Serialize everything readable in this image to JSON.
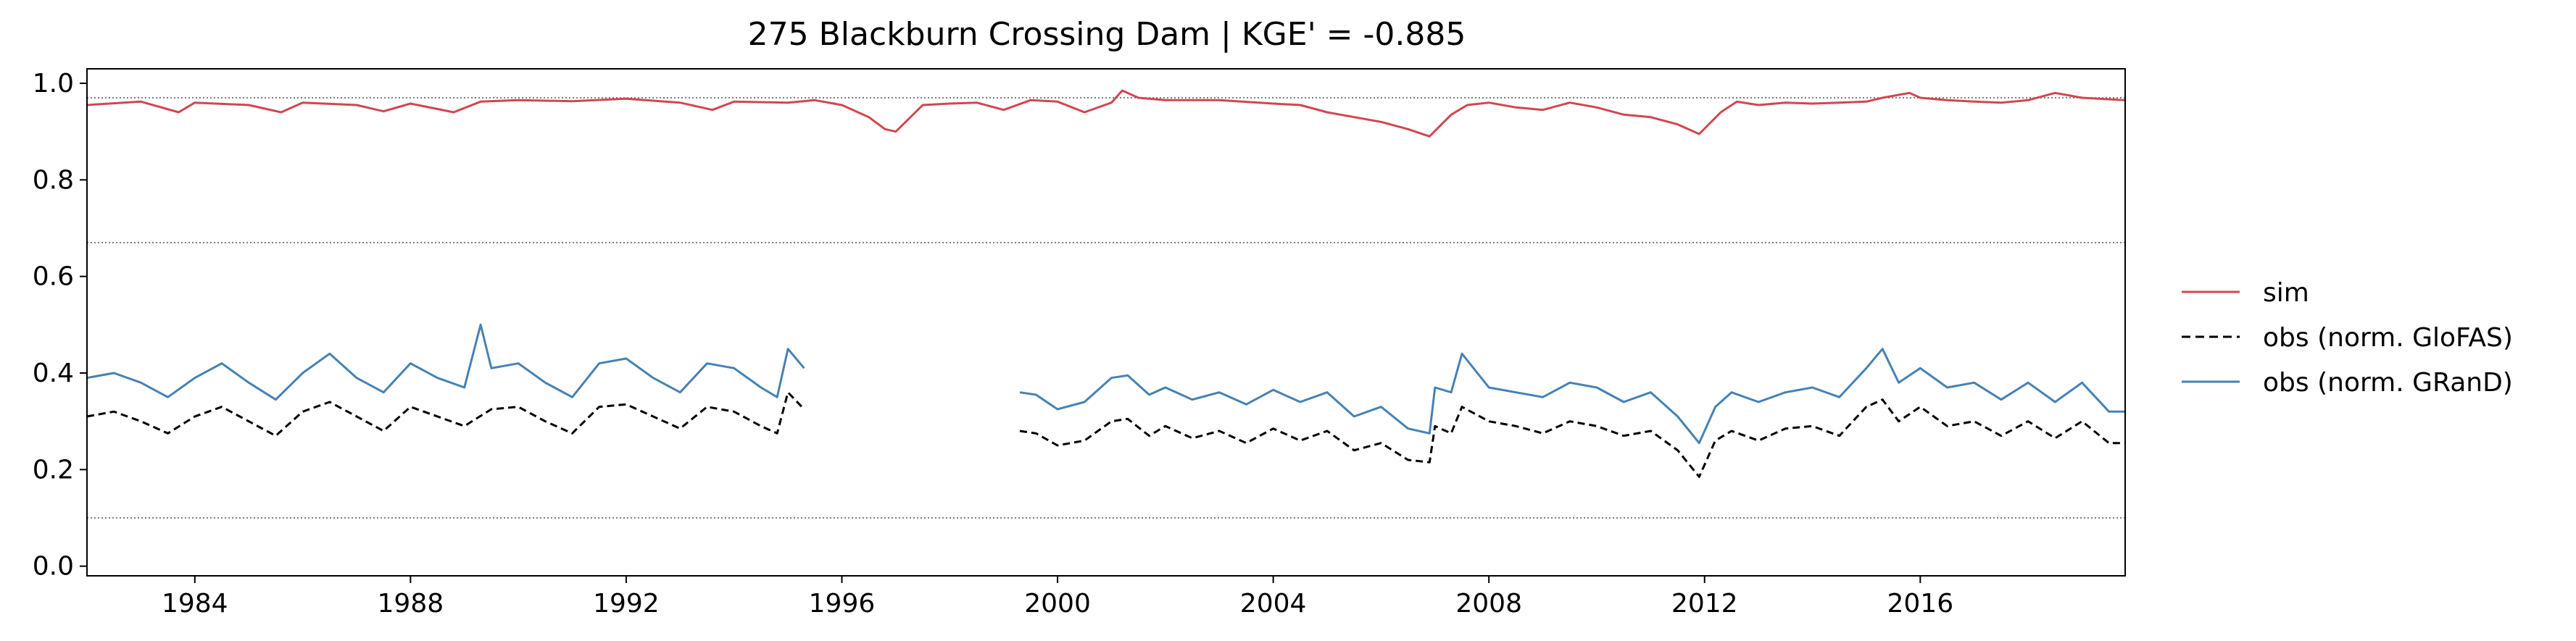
{
  "chart_data": {
    "type": "line",
    "title": "275  Blackburn Crossing Dam | KGE' = -0.885",
    "xlabel": "",
    "ylabel": "",
    "xlim": [
      1982.0,
      2019.8
    ],
    "ylim": [
      -0.02,
      1.03
    ],
    "x_ticks": [
      1984,
      1988,
      1992,
      1996,
      2000,
      2004,
      2008,
      2012,
      2016
    ],
    "x_tick_labels": [
      "1984",
      "1988",
      "1992",
      "1996",
      "2000",
      "2004",
      "2008",
      "2012",
      "2016"
    ],
    "y_ticks": [
      0.0,
      0.2,
      0.4,
      0.6,
      0.8,
      1.0
    ],
    "y_tick_labels": [
      "0.0",
      "0.2",
      "0.4",
      "0.6",
      "0.8",
      "1.0"
    ],
    "reference_lines": [
      0.97,
      0.67,
      0.1
    ],
    "grid": false,
    "legend_position": "outside-right",
    "series": [
      {
        "name": "sim",
        "label": "sim",
        "color": "#d0474f",
        "style": "solid",
        "x": [
          1982.0,
          1983.0,
          1983.7,
          1984.0,
          1985.0,
          1985.6,
          1986.0,
          1987.0,
          1987.5,
          1988.0,
          1988.8,
          1989.3,
          1990.0,
          1991.0,
          1992.0,
          1993.0,
          1993.6,
          1994.0,
          1995.0,
          1995.5,
          1996.0,
          1996.5,
          1996.8,
          1997.0,
          1997.5,
          1998.0,
          1998.5,
          1999.0,
          1999.5,
          2000.0,
          2000.5,
          2001.0,
          2001.2,
          2001.5,
          2002.0,
          2003.0,
          2004.0,
          2004.5,
          2005.0,
          2005.5,
          2006.0,
          2006.5,
          2006.9,
          2007.3,
          2007.6,
          2008.0,
          2008.5,
          2009.0,
          2009.5,
          2010.0,
          2010.5,
          2011.0,
          2011.5,
          2011.9,
          2012.3,
          2012.6,
          2013.0,
          2013.5,
          2014.0,
          2014.5,
          2015.0,
          2015.3,
          2015.8,
          2016.0,
          2016.5,
          2017.0,
          2017.5,
          2018.0,
          2018.5,
          2019.0,
          2019.8
        ],
        "values": [
          0.955,
          0.962,
          0.94,
          0.96,
          0.955,
          0.94,
          0.96,
          0.955,
          0.942,
          0.958,
          0.94,
          0.962,
          0.965,
          0.963,
          0.968,
          0.96,
          0.945,
          0.962,
          0.96,
          0.965,
          0.955,
          0.93,
          0.905,
          0.9,
          0.955,
          0.958,
          0.96,
          0.945,
          0.965,
          0.962,
          0.94,
          0.96,
          0.985,
          0.97,
          0.965,
          0.965,
          0.958,
          0.955,
          0.94,
          0.93,
          0.92,
          0.905,
          0.89,
          0.935,
          0.955,
          0.96,
          0.95,
          0.945,
          0.96,
          0.95,
          0.935,
          0.93,
          0.915,
          0.895,
          0.94,
          0.962,
          0.955,
          0.96,
          0.958,
          0.96,
          0.962,
          0.97,
          0.98,
          0.97,
          0.965,
          0.962,
          0.96,
          0.965,
          0.98,
          0.97,
          0.965
        ]
      },
      {
        "name": "obs-glofas",
        "label": "obs (norm. GloFAS)",
        "color": "#000000",
        "style": "dashed",
        "segments": [
          {
            "x": [
              1982.0,
              1982.5,
              1983.0,
              1983.5,
              1984.0,
              1984.5,
              1985.0,
              1985.5,
              1986.0,
              1986.5,
              1987.0,
              1987.5,
              1988.0,
              1988.5,
              1989.0,
              1989.5,
              1990.0,
              1990.5,
              1991.0,
              1991.5,
              1992.0,
              1992.5,
              1993.0,
              1993.5,
              1994.0,
              1994.5,
              1994.8,
              1995.0,
              1995.3
            ],
            "values": [
              0.31,
              0.32,
              0.3,
              0.275,
              0.31,
              0.33,
              0.3,
              0.27,
              0.32,
              0.34,
              0.31,
              0.28,
              0.33,
              0.31,
              0.29,
              0.325,
              0.33,
              0.3,
              0.275,
              0.33,
              0.335,
              0.31,
              0.285,
              0.33,
              0.32,
              0.29,
              0.275,
              0.36,
              0.325
            ]
          },
          {
            "x": [
              1999.3,
              1999.6,
              2000.0,
              2000.5,
              2001.0,
              2001.3,
              2001.7,
              2002.0,
              2002.5,
              2003.0,
              2003.5,
              2004.0,
              2004.5,
              2005.0,
              2005.5,
              2006.0,
              2006.5,
              2006.9,
              2007.0,
              2007.3,
              2007.5,
              2008.0,
              2008.5,
              2009.0,
              2009.5,
              2010.0,
              2010.5,
              2011.0,
              2011.5,
              2011.9,
              2012.2,
              2012.5,
              2013.0,
              2013.5,
              2014.0,
              2014.5,
              2015.0,
              2015.3,
              2015.6,
              2016.0,
              2016.5,
              2017.0,
              2017.5,
              2018.0,
              2018.5,
              2019.0,
              2019.5,
              2019.8
            ],
            "values": [
              0.28,
              0.275,
              0.25,
              0.26,
              0.3,
              0.305,
              0.27,
              0.29,
              0.265,
              0.28,
              0.255,
              0.285,
              0.26,
              0.28,
              0.24,
              0.255,
              0.22,
              0.215,
              0.29,
              0.275,
              0.33,
              0.3,
              0.29,
              0.275,
              0.3,
              0.29,
              0.27,
              0.28,
              0.24,
              0.185,
              0.26,
              0.28,
              0.26,
              0.285,
              0.29,
              0.27,
              0.33,
              0.345,
              0.3,
              0.33,
              0.29,
              0.3,
              0.27,
              0.3,
              0.265,
              0.3,
              0.255,
              0.255
            ]
          }
        ]
      },
      {
        "name": "obs-grand",
        "label": "obs (norm. GRanD)",
        "color": "#4682b4",
        "style": "solid",
        "segments": [
          {
            "x": [
              1982.0,
              1982.5,
              1983.0,
              1983.5,
              1984.0,
              1984.5,
              1985.0,
              1985.5,
              1986.0,
              1986.5,
              1987.0,
              1987.5,
              1988.0,
              1988.5,
              1989.0,
              1989.3,
              1989.5,
              1990.0,
              1990.5,
              1991.0,
              1991.5,
              1992.0,
              1992.5,
              1993.0,
              1993.5,
              1994.0,
              1994.5,
              1994.8,
              1995.0,
              1995.3
            ],
            "values": [
              0.39,
              0.4,
              0.38,
              0.35,
              0.39,
              0.42,
              0.38,
              0.345,
              0.4,
              0.44,
              0.39,
              0.36,
              0.42,
              0.39,
              0.37,
              0.5,
              0.41,
              0.42,
              0.38,
              0.35,
              0.42,
              0.43,
              0.39,
              0.36,
              0.42,
              0.41,
              0.37,
              0.35,
              0.45,
              0.41
            ]
          },
          {
            "x": [
              1999.3,
              1999.6,
              2000.0,
              2000.5,
              2001.0,
              2001.3,
              2001.7,
              2002.0,
              2002.5,
              2003.0,
              2003.5,
              2004.0,
              2004.5,
              2005.0,
              2005.5,
              2006.0,
              2006.5,
              2006.9,
              2007.0,
              2007.3,
              2007.5,
              2008.0,
              2008.5,
              2009.0,
              2009.5,
              2010.0,
              2010.5,
              2011.0,
              2011.5,
              2011.9,
              2012.2,
              2012.5,
              2013.0,
              2013.5,
              2014.0,
              2014.5,
              2015.0,
              2015.3,
              2015.6,
              2016.0,
              2016.5,
              2017.0,
              2017.5,
              2018.0,
              2018.5,
              2019.0,
              2019.5,
              2019.8
            ],
            "values": [
              0.36,
              0.355,
              0.325,
              0.34,
              0.39,
              0.395,
              0.355,
              0.37,
              0.345,
              0.36,
              0.335,
              0.365,
              0.34,
              0.36,
              0.31,
              0.33,
              0.285,
              0.275,
              0.37,
              0.36,
              0.44,
              0.37,
              0.36,
              0.35,
              0.38,
              0.37,
              0.34,
              0.36,
              0.31,
              0.255,
              0.33,
              0.36,
              0.34,
              0.36,
              0.37,
              0.35,
              0.41,
              0.45,
              0.38,
              0.41,
              0.37,
              0.38,
              0.345,
              0.38,
              0.34,
              0.38,
              0.32,
              0.32
            ]
          }
        ]
      }
    ]
  }
}
